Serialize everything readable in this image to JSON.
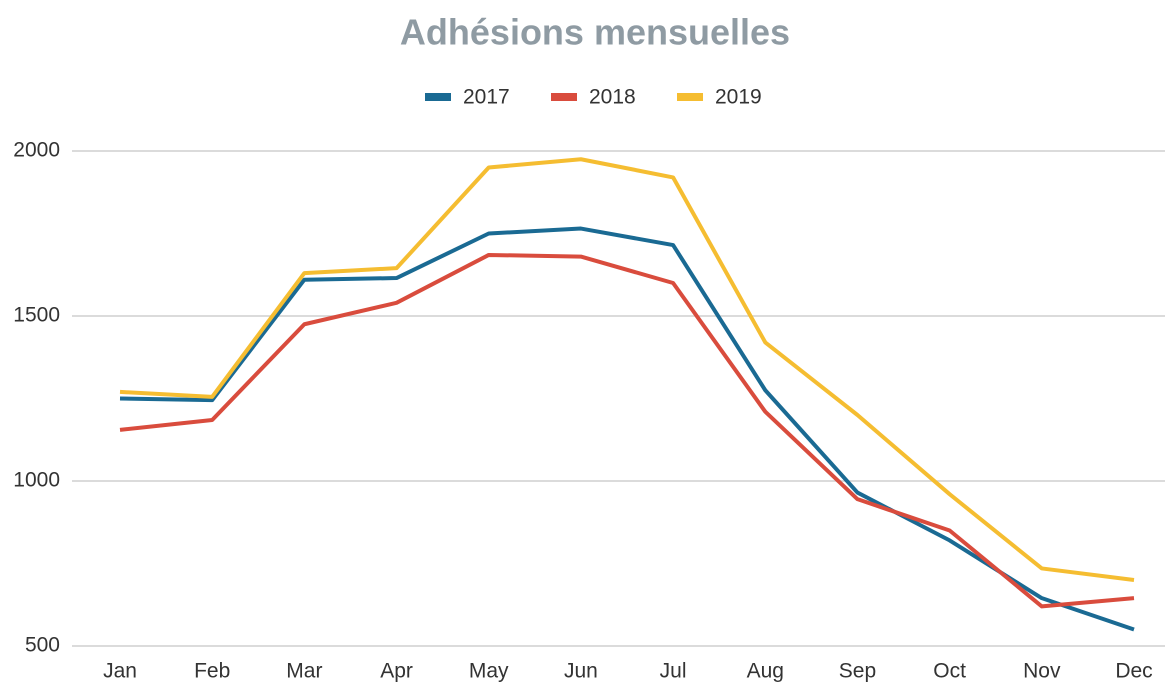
{
  "chart_data": {
    "type": "line",
    "title": "Adhésions mensuelles",
    "categories": [
      "Jan",
      "Feb",
      "Mar",
      "Apr",
      "May",
      "Jun",
      "Jul",
      "Aug",
      "Sep",
      "Oct",
      "Nov",
      "Dec"
    ],
    "series": [
      {
        "name": "2017",
        "color": "#1a6a93",
        "values": [
          1250,
          1245,
          1610,
          1615,
          1750,
          1765,
          1715,
          1275,
          965,
          820,
          645,
          550
        ]
      },
      {
        "name": "2018",
        "color": "#d94c3d",
        "values": [
          1155,
          1185,
          1475,
          1540,
          1685,
          1680,
          1600,
          1210,
          945,
          850,
          620,
          645
        ]
      },
      {
        "name": "2019",
        "color": "#f5bd31",
        "values": [
          1270,
          1255,
          1630,
          1645,
          1950,
          1975,
          1920,
          1420,
          1200,
          960,
          735,
          700
        ]
      }
    ],
    "ylim": [
      500,
      2000
    ],
    "yticks": [
      500,
      1000,
      1500,
      2000
    ],
    "grid": true,
    "legend": "top"
  }
}
